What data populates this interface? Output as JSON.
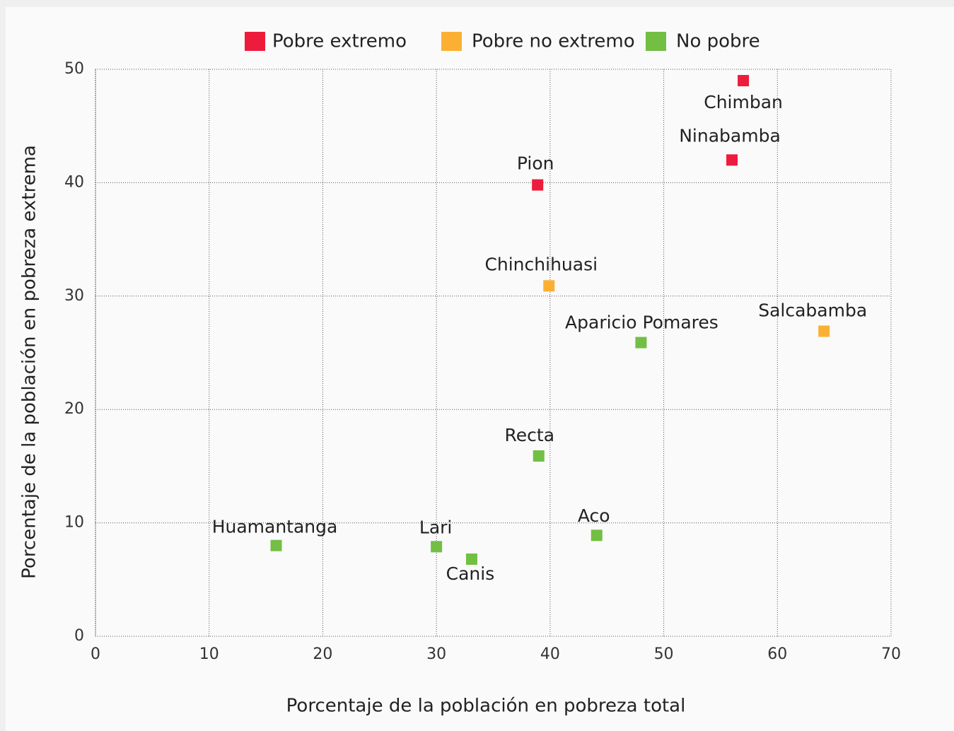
{
  "chart_data": {
    "type": "scatter",
    "x_label": "Porcentaje de la población en pobreza total",
    "y_label": "Porcentaje de la población en pobreza extrema",
    "xlim": [
      0,
      70
    ],
    "xticks": [
      0,
      10,
      20,
      30,
      40,
      50,
      60,
      70
    ],
    "ylim": [
      0,
      50
    ],
    "yticks": [
      0,
      10,
      20,
      30,
      40,
      50
    ],
    "grid": true,
    "legend": "top",
    "series": [
      {
        "name": "Pobre extremo",
        "color": "#ee1c3c",
        "x": [
          57.0,
          56.0,
          38.9
        ],
        "values": [
          49.0,
          42.0,
          39.8
        ],
        "labels": [
          "Chimban",
          "Ninabamba",
          "Pion"
        ]
      },
      {
        "name": "Pobre no extremo",
        "color": "#fbb034",
        "x": [
          39.9,
          64.1
        ],
        "values": [
          30.9,
          26.9
        ],
        "labels": [
          "Chinchihuasi",
          "Salcabamba"
        ]
      },
      {
        "name": "No pobre",
        "color": "#72bf44",
        "x": [
          48.0,
          39.0,
          44.1,
          15.9,
          30.0,
          33.1
        ],
        "values": [
          25.9,
          15.9,
          8.9,
          8.0,
          7.9,
          6.8
        ],
        "labels": [
          "Aparicio Pomares",
          "Recta",
          "Aco",
          "Huamantanga",
          "Lari",
          "Canis"
        ]
      }
    ]
  }
}
